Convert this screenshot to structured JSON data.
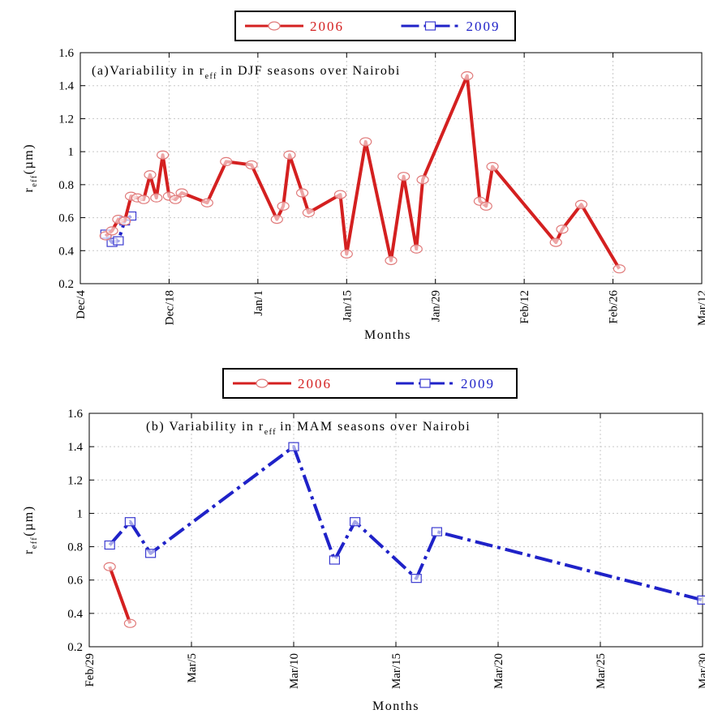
{
  "chart_data": [
    {
      "type": "line",
      "title": "(a)Variability in r",
      "title_sub": "eff",
      "title_suffix": "in DJF seasons over Nairobi",
      "xlabel": "Months",
      "ylabel": "r",
      "ylabel_sub": "eff",
      "ylabel_unit": "(µm)",
      "xlim": [
        "2005-12-04",
        "2006-03-12"
      ],
      "ylim": [
        0.2,
        1.6
      ],
      "yticks": [
        0.2,
        0.4,
        0.6,
        0.8,
        1,
        1.2,
        1.4,
        1.6
      ],
      "ytick_labels": [
        "0.2",
        "0.4",
        "0.6",
        "0.8",
        "1",
        "1.2",
        "1.4",
        "1.6"
      ],
      "xticks": [
        "2005-12-04",
        "2005-12-18",
        "2006-01-01",
        "2006-01-15",
        "2006-01-29",
        "2006-02-12",
        "2006-02-26",
        "2006-03-12"
      ],
      "xtick_labels": [
        "Dec/4",
        "Dec/18",
        "Jan/1",
        "Jan/15",
        "Jan/29",
        "Feb/12",
        "Feb/26",
        "Mar/12"
      ],
      "grid": true,
      "legend_position": "top-center",
      "series": [
        {
          "name": "2006",
          "color": "#d42020",
          "marker": "circle",
          "line_style": "solid",
          "points": [
            [
              "2005-12-08",
              0.49
            ],
            [
              "2005-12-09",
              0.52
            ],
            [
              "2005-12-10",
              0.59
            ],
            [
              "2005-12-11",
              0.58
            ],
            [
              "2005-12-12",
              0.73
            ],
            [
              "2005-12-13",
              0.72
            ],
            [
              "2005-12-14",
              0.71
            ],
            [
              "2005-12-15",
              0.86
            ],
            [
              "2005-12-16",
              0.72
            ],
            [
              "2005-12-17",
              0.98
            ],
            [
              "2005-12-18",
              0.73
            ],
            [
              "2005-12-19",
              0.71
            ],
            [
              "2005-12-20",
              0.75
            ],
            [
              "2005-12-24",
              0.69
            ],
            [
              "2005-12-27",
              0.94
            ],
            [
              "2005-12-31",
              0.92
            ],
            [
              "2006-01-04",
              0.59
            ],
            [
              "2006-01-05",
              0.67
            ],
            [
              "2006-01-06",
              0.98
            ],
            [
              "2006-01-08",
              0.75
            ],
            [
              "2006-01-09",
              0.63
            ],
            [
              "2006-01-14",
              0.74
            ],
            [
              "2006-01-15",
              0.38
            ],
            [
              "2006-01-18",
              1.06
            ],
            [
              "2006-01-22",
              0.34
            ],
            [
              "2006-01-24",
              0.85
            ],
            [
              "2006-01-26",
              0.41
            ],
            [
              "2006-01-27",
              0.83
            ],
            [
              "2006-02-03",
              1.46
            ],
            [
              "2006-02-05",
              0.7
            ],
            [
              "2006-02-06",
              0.67
            ],
            [
              "2006-02-07",
              0.91
            ],
            [
              "2006-02-17",
              0.45
            ],
            [
              "2006-02-18",
              0.53
            ],
            [
              "2006-02-21",
              0.68
            ],
            [
              "2006-02-27",
              0.29
            ]
          ]
        },
        {
          "name": "2009",
          "color": "#1f22c8",
          "marker": "square",
          "line_style": "dash-dot",
          "points": [
            [
              "2005-12-08",
              0.5
            ],
            [
              "2005-12-09",
              0.45
            ],
            [
              "2005-12-10",
              0.46
            ],
            [
              "2005-12-11",
              0.58
            ],
            [
              "2005-12-12",
              0.61
            ]
          ]
        }
      ]
    },
    {
      "type": "line",
      "title": "(b)   Variability in r",
      "title_sub": "eff",
      "title_suffix": "in MAM seasons over Nairobi",
      "xlabel": "Months",
      "ylabel": "r",
      "ylabel_sub": "eff",
      "ylabel_unit": "(µm)",
      "xlim": [
        "2009-02-28",
        "2009-03-30"
      ],
      "ylim": [
        0.2,
        1.6
      ],
      "yticks": [
        0.2,
        0.4,
        0.6,
        0.8,
        1,
        1.2,
        1.4,
        1.6
      ],
      "ytick_labels": [
        "0.2",
        "0.4",
        "0.6",
        "0.8",
        "1",
        "1.2",
        "1.4",
        "1.6"
      ],
      "xticks": [
        "2009-02-28",
        "2009-03-05",
        "2009-03-10",
        "2009-03-15",
        "2009-03-20",
        "2009-03-25",
        "2009-03-30"
      ],
      "xtick_labels": [
        "Feb/29",
        "Mar/5",
        "Mar/10",
        "Mar/15",
        "Mar/20",
        "Mar/25",
        "Mar/30"
      ],
      "grid": true,
      "legend_position": "top-center",
      "series": [
        {
          "name": "2006",
          "color": "#d42020",
          "marker": "circle",
          "line_style": "solid",
          "points": [
            [
              "2009-03-01",
              0.68
            ],
            [
              "2009-03-02",
              0.34
            ]
          ]
        },
        {
          "name": "2009",
          "color": "#1f22c8",
          "marker": "square",
          "line_style": "dash-dot",
          "points": [
            [
              "2009-03-01",
              0.81
            ],
            [
              "2009-03-02",
              0.95
            ],
            [
              "2009-03-03",
              0.76
            ],
            [
              "2009-03-10",
              1.4
            ],
            [
              "2009-03-12",
              0.72
            ],
            [
              "2009-03-13",
              0.95
            ],
            [
              "2009-03-16",
              0.61
            ],
            [
              "2009-03-17",
              0.89
            ],
            [
              "2009-03-30",
              0.48
            ]
          ]
        }
      ]
    }
  ]
}
